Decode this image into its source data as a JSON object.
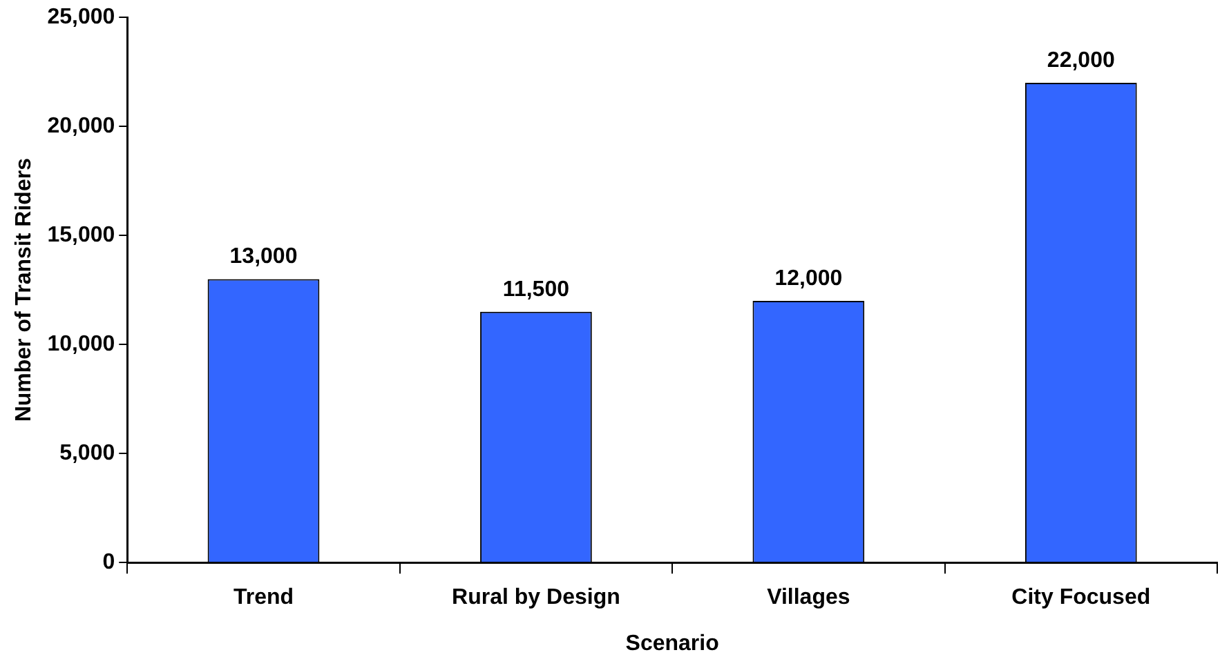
{
  "chart_data": {
    "type": "bar",
    "xlabel": "Scenario",
    "ylabel": "Number of Transit Riders",
    "categories": [
      "Trend",
      "Rural by Design",
      "Villages",
      "City Focused"
    ],
    "values": [
      13000,
      11500,
      12000,
      22000
    ],
    "color": "#3366ff",
    "value_labels": [
      "13,000",
      "11,500",
      "12,000",
      "22,000"
    ],
    "ylim": [
      0,
      25000
    ],
    "yticks": [
      {
        "value": 0,
        "label": "0"
      },
      {
        "value": 5000,
        "label": "5,000"
      },
      {
        "value": 10000,
        "label": "10,000"
      },
      {
        "value": 15000,
        "label": "15,000"
      },
      {
        "value": 20000,
        "label": "20,000"
      },
      {
        "value": 25000,
        "label": "25,000"
      }
    ],
    "grid": false,
    "legend": false
  }
}
